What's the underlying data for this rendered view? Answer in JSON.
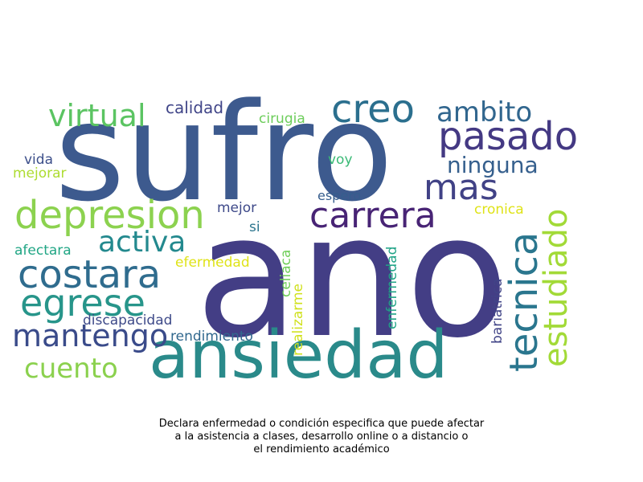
{
  "words": {
    "ano": "ano",
    "sufro": "sufro",
    "ansiedad": "ansiedad",
    "creo": "creo",
    "pasado": "pasado",
    "tecnica": "tecnica",
    "estudiado": "estudiado",
    "depresion": "depresion",
    "carrera": "carrera",
    "costara": "costara",
    "egrese": "egrese",
    "mantengo": "mantengo",
    "virtual": "virtual",
    "ambito": "ambito",
    "mas": "mas",
    "ninguna": "ninguna",
    "activa": "activa",
    "cuento": "cuento",
    "calidad": "calidad",
    "cirugia": "cirugia",
    "vida": "vida",
    "mejorar": "mejorar",
    "voy": "voy",
    "espero": "espero",
    "mejor": "mejor",
    "cronica": "cronica",
    "si": "si",
    "afectara": "afectara",
    "efermedad": "efermedad",
    "celiaca": "celiaca",
    "realizarme": "realizarme",
    "enfermedad": "enfermedad",
    "bariatrica": "bariatrica",
    "discapacidad": "discapacidad",
    "rendimiento": "rendimiento"
  },
  "caption": {
    "line1": "Declara enfermedad o condición especifica que puede afectar",
    "line2": "a la asistencia a clases, desarrollo online o a distancio o",
    "line3": "el rendimiento académico"
  }
}
